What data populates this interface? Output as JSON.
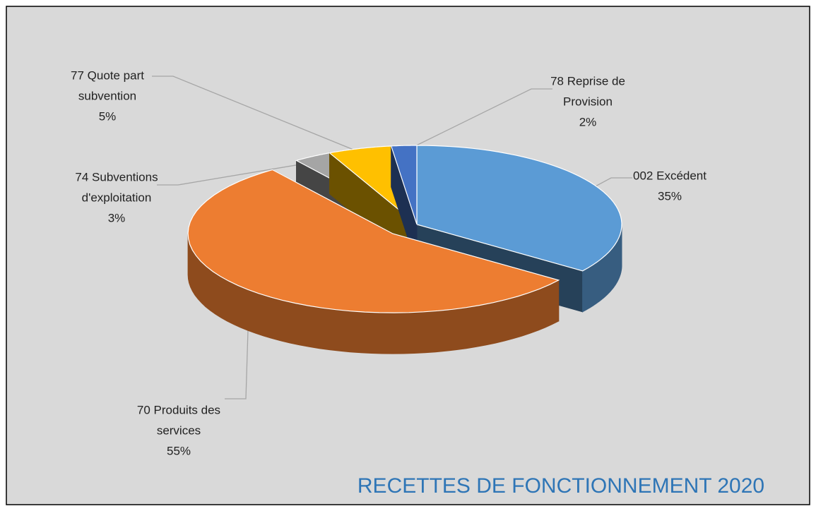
{
  "chart_data": {
    "type": "pie3d",
    "title": "RECETTES DE FONCTIONNEMENT 2020",
    "categories": [
      [
        "002 Excédent"
      ],
      [
        "70  Produits des",
        "services"
      ],
      [
        "74 Subventions",
        "d'exploitation"
      ],
      [
        "77 Quote part",
        "subvention"
      ],
      [
        "78 Reprise de",
        "Provision"
      ]
    ],
    "values": [
      35,
      55,
      3,
      5,
      2
    ],
    "value_labels": [
      "35%",
      "55%",
      "3%",
      "5%",
      "2%"
    ],
    "colors": [
      "#5b9bd5",
      "#ed7d31",
      "#a5a5a5",
      "#ffc000",
      "#4472c4"
    ],
    "exploded": [
      1
    ]
  }
}
